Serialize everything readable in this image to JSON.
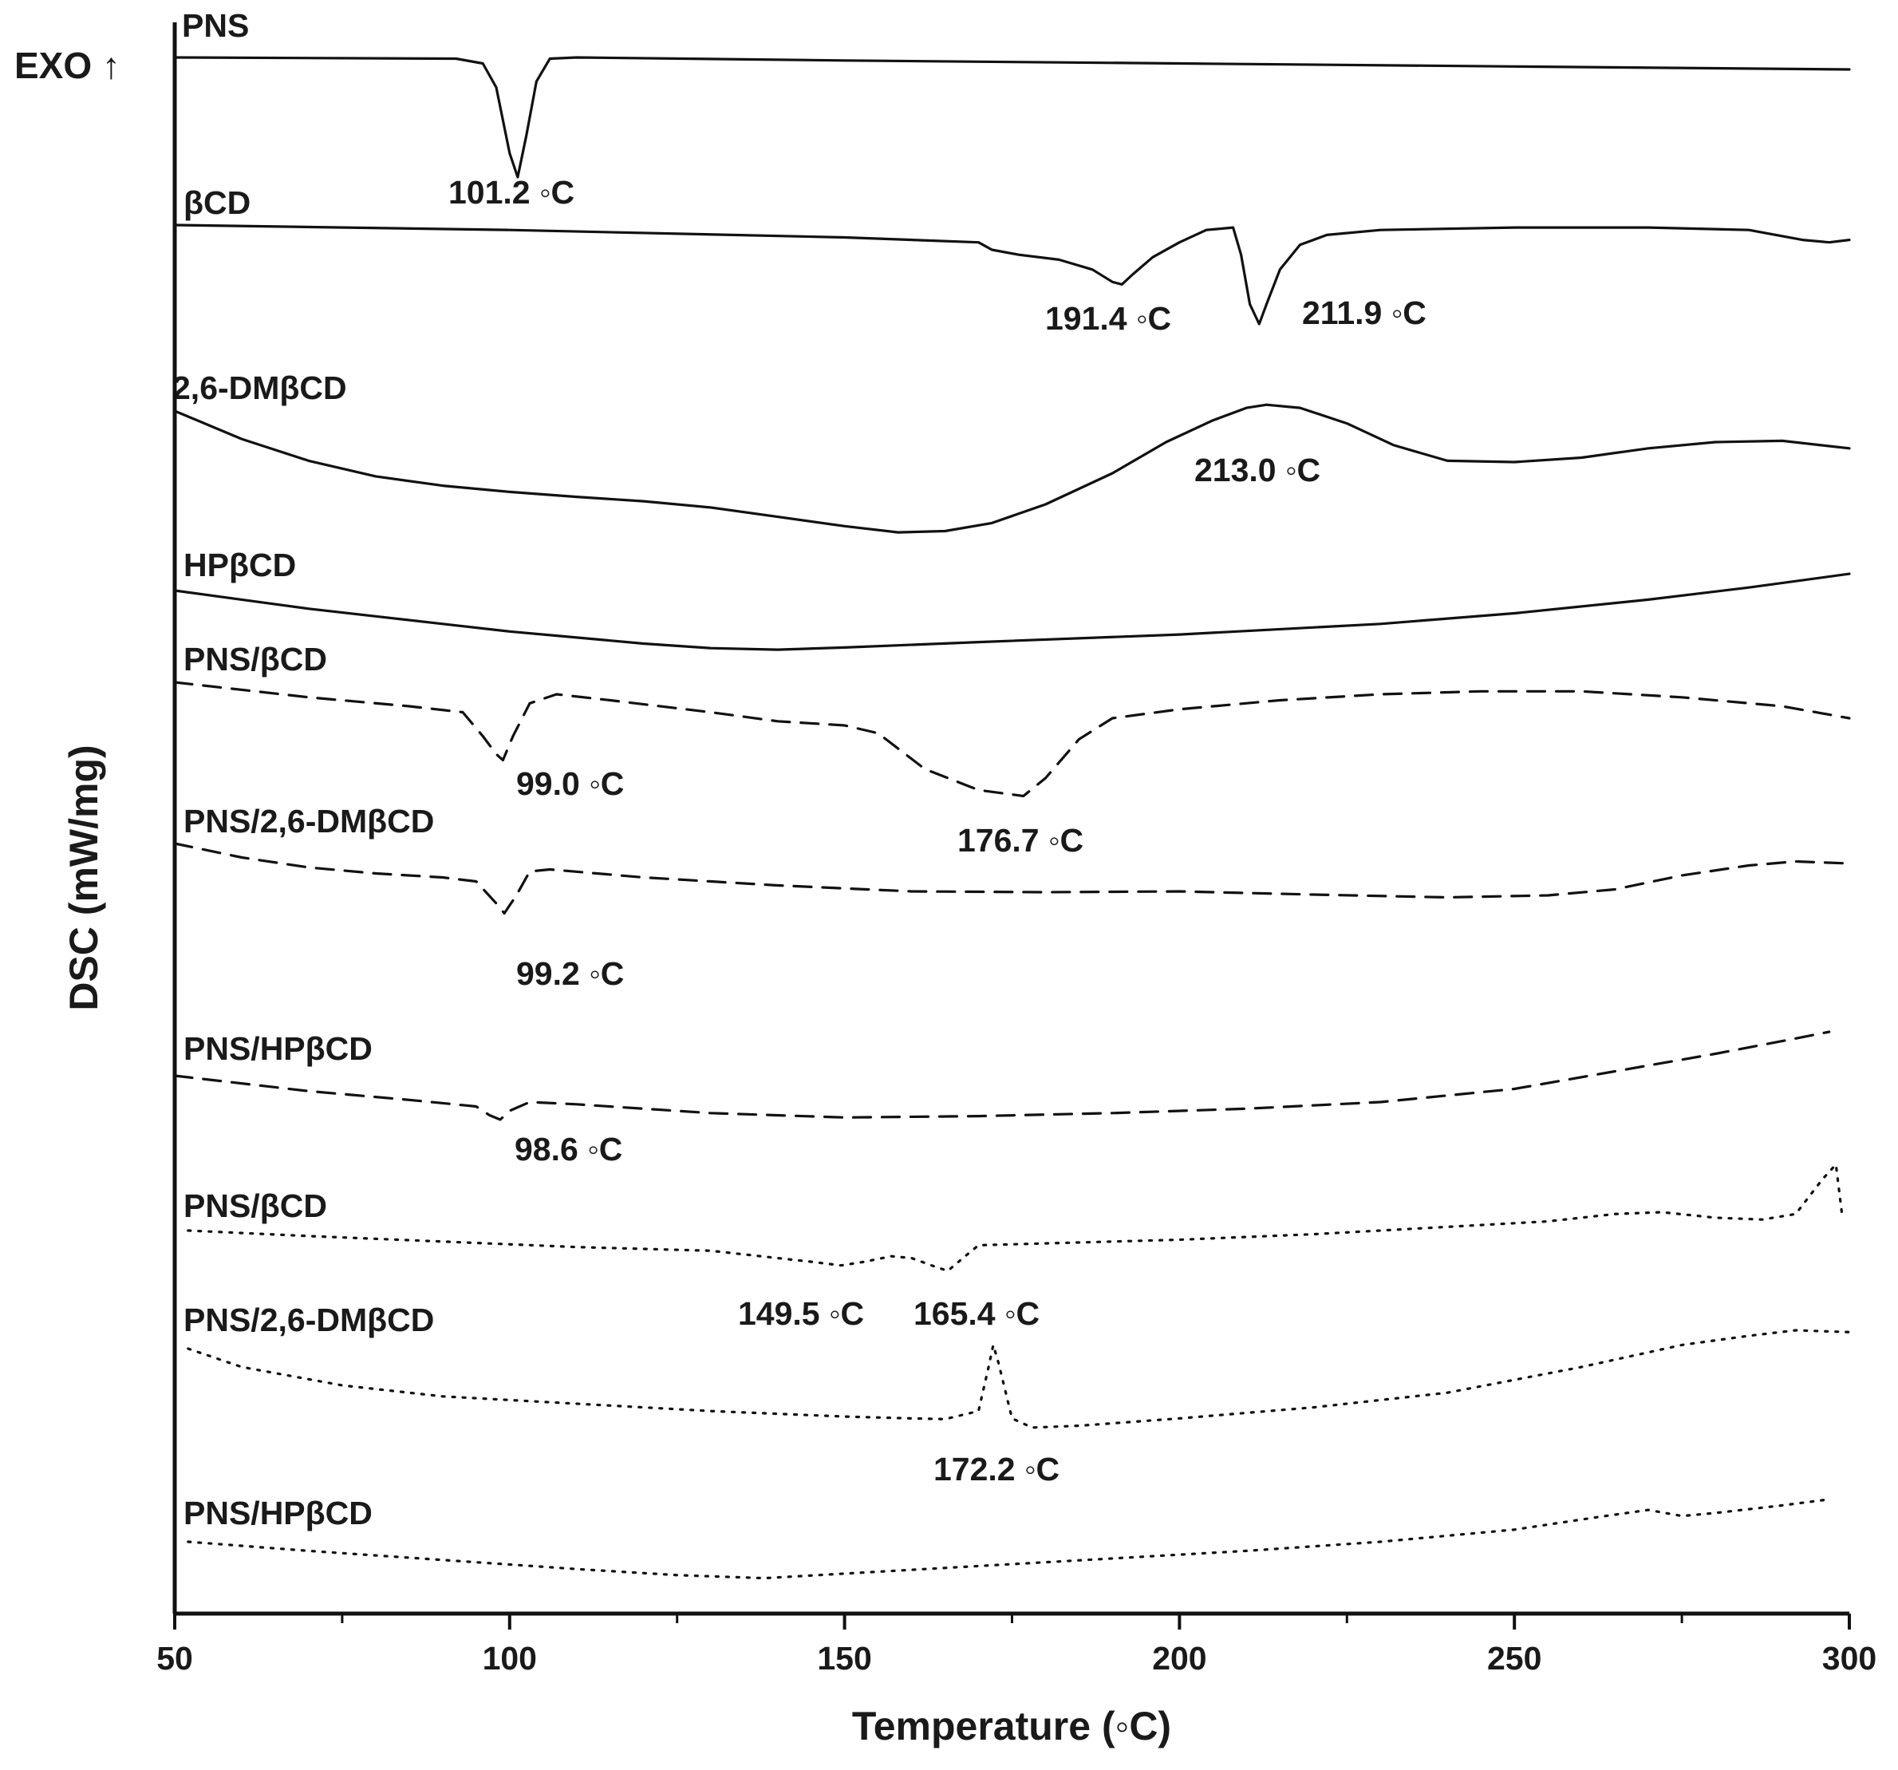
{
  "chart_data": {
    "type": "line",
    "title": "",
    "xlabel": "Temperature (◦C)",
    "ylabel": "DSC (mW/mg)",
    "exo_label": "EXO ↑",
    "xlim": [
      50,
      300
    ],
    "xticks": [
      50,
      100,
      150,
      200,
      250,
      300
    ],
    "xtick_labels": [
      "50",
      "100",
      "150",
      "200",
      "250",
      "300"
    ],
    "grid": false,
    "legend": "none",
    "y_units": "arbitrary (stacked traces, offset)",
    "series": [
      {
        "name": "PNS",
        "style": "solid",
        "points": [
          [
            50,
            0
          ],
          [
            92,
            -0.02
          ],
          [
            96,
            -0.1
          ],
          [
            98,
            -0.5
          ],
          [
            100,
            -1.6
          ],
          [
            101.2,
            -2.0
          ],
          [
            102.5,
            -1.3
          ],
          [
            104,
            -0.4
          ],
          [
            106,
            -0.02
          ],
          [
            110,
            0
          ],
          [
            150,
            -0.05
          ],
          [
            200,
            -0.1
          ],
          [
            250,
            -0.15
          ],
          [
            300,
            -0.2
          ]
        ],
        "annotations": [
          {
            "text": "101.2 ◦C",
            "x": 101.2
          }
        ]
      },
      {
        "name": "βCD",
        "style": "solid",
        "points": [
          [
            50,
            0
          ],
          [
            100,
            -0.1
          ],
          [
            150,
            -0.25
          ],
          [
            170,
            -0.35
          ],
          [
            172,
            -0.5
          ],
          [
            176,
            -0.6
          ],
          [
            182,
            -0.7
          ],
          [
            187,
            -0.9
          ],
          [
            190,
            -1.15
          ],
          [
            191.4,
            -1.2
          ],
          [
            193,
            -1.0
          ],
          [
            196,
            -0.65
          ],
          [
            200,
            -0.35
          ],
          [
            204,
            -0.1
          ],
          [
            208,
            -0.05
          ],
          [
            209.2,
            -0.6
          ],
          [
            210.5,
            -1.6
          ],
          [
            211.9,
            -2.0
          ],
          [
            213,
            -1.6
          ],
          [
            215,
            -0.9
          ],
          [
            218,
            -0.4
          ],
          [
            222,
            -0.2
          ],
          [
            230,
            -0.1
          ],
          [
            250,
            -0.05
          ],
          [
            270,
            -0.05
          ],
          [
            285,
            -0.1
          ],
          [
            293,
            -0.3
          ],
          [
            297,
            -0.35
          ],
          [
            300,
            -0.3
          ]
        ],
        "annotations": [
          {
            "text": "191.4 ◦C",
            "x": 191.4
          },
          {
            "text": "211.9 ◦C",
            "x": 211.9
          }
        ]
      },
      {
        "name": "2,6-DMβCD",
        "style": "solid",
        "points": [
          [
            50,
            0
          ],
          [
            60,
            -0.45
          ],
          [
            70,
            -0.8
          ],
          [
            80,
            -1.05
          ],
          [
            90,
            -1.2
          ],
          [
            100,
            -1.3
          ],
          [
            110,
            -1.38
          ],
          [
            120,
            -1.45
          ],
          [
            130,
            -1.55
          ],
          [
            140,
            -1.7
          ],
          [
            150,
            -1.85
          ],
          [
            158,
            -1.95
          ],
          [
            165,
            -1.93
          ],
          [
            172,
            -1.8
          ],
          [
            180,
            -1.5
          ],
          [
            190,
            -1.0
          ],
          [
            198,
            -0.5
          ],
          [
            205,
            -0.15
          ],
          [
            210,
            0.05
          ],
          [
            213,
            0.1
          ],
          [
            218,
            0.05
          ],
          [
            225,
            -0.2
          ],
          [
            232,
            -0.55
          ],
          [
            240,
            -0.8
          ],
          [
            250,
            -0.82
          ],
          [
            260,
            -0.75
          ],
          [
            270,
            -0.6
          ],
          [
            280,
            -0.5
          ],
          [
            290,
            -0.48
          ],
          [
            300,
            -0.6
          ]
        ],
        "annotations": [
          {
            "text": "213.0 ◦C",
            "x": 213.0
          }
        ]
      },
      {
        "name": "HPβCD",
        "style": "solid",
        "points": [
          [
            50,
            0
          ],
          [
            60,
            -0.3
          ],
          [
            70,
            -0.6
          ],
          [
            80,
            -0.85
          ],
          [
            90,
            -1.1
          ],
          [
            100,
            -1.35
          ],
          [
            110,
            -1.55
          ],
          [
            120,
            -1.75
          ],
          [
            130,
            -1.9
          ],
          [
            140,
            -1.95
          ],
          [
            150,
            -1.88
          ],
          [
            170,
            -1.7
          ],
          [
            200,
            -1.45
          ],
          [
            230,
            -1.1
          ],
          [
            250,
            -0.75
          ],
          [
            270,
            -0.3
          ],
          [
            285,
            0.1
          ],
          [
            300,
            0.55
          ]
        ],
        "annotations": []
      },
      {
        "name": "PNS/βCD",
        "style": "dashed",
        "points": [
          [
            50,
            0
          ],
          [
            70,
            -0.25
          ],
          [
            85,
            -0.4
          ],
          [
            93,
            -0.5
          ],
          [
            96,
            -0.9
          ],
          [
            98,
            -1.2
          ],
          [
            99,
            -1.3
          ],
          [
            100.5,
            -0.9
          ],
          [
            103,
            -0.35
          ],
          [
            107,
            -0.2
          ],
          [
            115,
            -0.3
          ],
          [
            130,
            -0.5
          ],
          [
            140,
            -0.65
          ],
          [
            150,
            -0.72
          ],
          [
            155,
            -0.85
          ],
          [
            162,
            -1.45
          ],
          [
            170,
            -1.8
          ],
          [
            176.7,
            -1.9
          ],
          [
            180,
            -1.6
          ],
          [
            185,
            -0.95
          ],
          [
            190,
            -0.6
          ],
          [
            200,
            -0.45
          ],
          [
            215,
            -0.3
          ],
          [
            230,
            -0.2
          ],
          [
            245,
            -0.15
          ],
          [
            260,
            -0.15
          ],
          [
            275,
            -0.25
          ],
          [
            290,
            -0.4
          ],
          [
            300,
            -0.6
          ]
        ],
        "annotations": [
          {
            "text": "99.0 ◦C",
            "x": 99.0
          },
          {
            "text": "176.7 ◦C",
            "x": 176.7
          }
        ]
      },
      {
        "name": "PNS/2,6-DMβCD",
        "style": "dashed",
        "points": [
          [
            50,
            0
          ],
          [
            60,
            -0.35
          ],
          [
            70,
            -0.6
          ],
          [
            80,
            -0.75
          ],
          [
            90,
            -0.85
          ],
          [
            95,
            -0.95
          ],
          [
            98,
            -1.5
          ],
          [
            99.2,
            -1.75
          ],
          [
            101,
            -1.3
          ],
          [
            103,
            -0.7
          ],
          [
            106,
            -0.65
          ],
          [
            120,
            -0.85
          ],
          [
            140,
            -1.05
          ],
          [
            160,
            -1.2
          ],
          [
            180,
            -1.22
          ],
          [
            200,
            -1.2
          ],
          [
            220,
            -1.28
          ],
          [
            240,
            -1.35
          ],
          [
            255,
            -1.3
          ],
          [
            265,
            -1.15
          ],
          [
            275,
            -0.8
          ],
          [
            285,
            -0.55
          ],
          [
            292,
            -0.45
          ],
          [
            300,
            -0.5
          ]
        ],
        "annotations": [
          {
            "text": "99.2 ◦C",
            "x": 99.2
          }
        ]
      },
      {
        "name": "PNS/HPβCD",
        "style": "dashed",
        "points": [
          [
            50,
            0
          ],
          [
            70,
            -0.35
          ],
          [
            85,
            -0.55
          ],
          [
            95,
            -0.7
          ],
          [
            97,
            -0.9
          ],
          [
            98.6,
            -1.0
          ],
          [
            100,
            -0.8
          ],
          [
            103,
            -0.6
          ],
          [
            110,
            -0.65
          ],
          [
            130,
            -0.85
          ],
          [
            150,
            -0.95
          ],
          [
            170,
            -0.92
          ],
          [
            190,
            -0.85
          ],
          [
            210,
            -0.75
          ],
          [
            230,
            -0.6
          ],
          [
            250,
            -0.3
          ],
          [
            265,
            0.1
          ],
          [
            280,
            0.5
          ],
          [
            292,
            0.85
          ],
          [
            297,
            1.0
          ]
        ],
        "annotations": [
          {
            "text": "98.6 ◦C",
            "x": 98.6
          }
        ]
      },
      {
        "name": "PNS/βCD",
        "style": "dotted",
        "points": [
          [
            52,
            0
          ],
          [
            70,
            -0.15
          ],
          [
            90,
            -0.3
          ],
          [
            110,
            -0.45
          ],
          [
            130,
            -0.55
          ],
          [
            145,
            -0.85
          ],
          [
            149.5,
            -0.95
          ],
          [
            153,
            -0.85
          ],
          [
            157,
            -0.7
          ],
          [
            160,
            -0.75
          ],
          [
            163,
            -0.95
          ],
          [
            165.4,
            -1.1
          ],
          [
            168,
            -0.7
          ],
          [
            170,
            -0.4
          ],
          [
            180,
            -0.35
          ],
          [
            200,
            -0.25
          ],
          [
            220,
            -0.1
          ],
          [
            240,
            0.1
          ],
          [
            255,
            0.25
          ],
          [
            265,
            0.45
          ],
          [
            272,
            0.5
          ],
          [
            280,
            0.35
          ],
          [
            287,
            0.3
          ],
          [
            292,
            0.45
          ],
          [
            296,
            1.4
          ],
          [
            298,
            1.8
          ],
          [
            299,
            0.3
          ]
        ],
        "annotations": [
          {
            "text": "149.5 ◦C",
            "x": 149.5
          },
          {
            "text": "165.4 ◦C",
            "x": 165.4
          }
        ]
      },
      {
        "name": "PNS/2,6-DMβCD",
        "style": "dotted",
        "points": [
          [
            52,
            0
          ],
          [
            60,
            -0.5
          ],
          [
            75,
            -1.0
          ],
          [
            90,
            -1.3
          ],
          [
            110,
            -1.5
          ],
          [
            130,
            -1.7
          ],
          [
            150,
            -1.85
          ],
          [
            160,
            -1.9
          ],
          [
            165,
            -1.92
          ],
          [
            170,
            -1.7
          ],
          [
            171.5,
            -0.5
          ],
          [
            172.2,
            0.1
          ],
          [
            173,
            -0.4
          ],
          [
            175,
            -1.9
          ],
          [
            178,
            -2.15
          ],
          [
            185,
            -2.1
          ],
          [
            200,
            -1.9
          ],
          [
            220,
            -1.6
          ],
          [
            240,
            -1.2
          ],
          [
            260,
            -0.5
          ],
          [
            275,
            0.1
          ],
          [
            285,
            0.35
          ],
          [
            292,
            0.5
          ],
          [
            300,
            0.45
          ]
        ],
        "annotations": [
          {
            "text": "172.2 ◦C",
            "x": 172.2
          }
        ]
      },
      {
        "name": "PNS/HPβCD",
        "style": "dotted",
        "points": [
          [
            52,
            0
          ],
          [
            70,
            -0.3
          ],
          [
            90,
            -0.6
          ],
          [
            110,
            -0.9
          ],
          [
            125,
            -1.1
          ],
          [
            138,
            -1.2
          ],
          [
            150,
            -1.05
          ],
          [
            170,
            -0.8
          ],
          [
            190,
            -0.55
          ],
          [
            210,
            -0.3
          ],
          [
            230,
            0
          ],
          [
            250,
            0.4
          ],
          [
            262,
            0.8
          ],
          [
            270,
            1.05
          ],
          [
            275,
            0.85
          ],
          [
            280,
            0.95
          ],
          [
            290,
            1.2
          ],
          [
            297,
            1.4
          ]
        ],
        "annotations": []
      }
    ]
  }
}
